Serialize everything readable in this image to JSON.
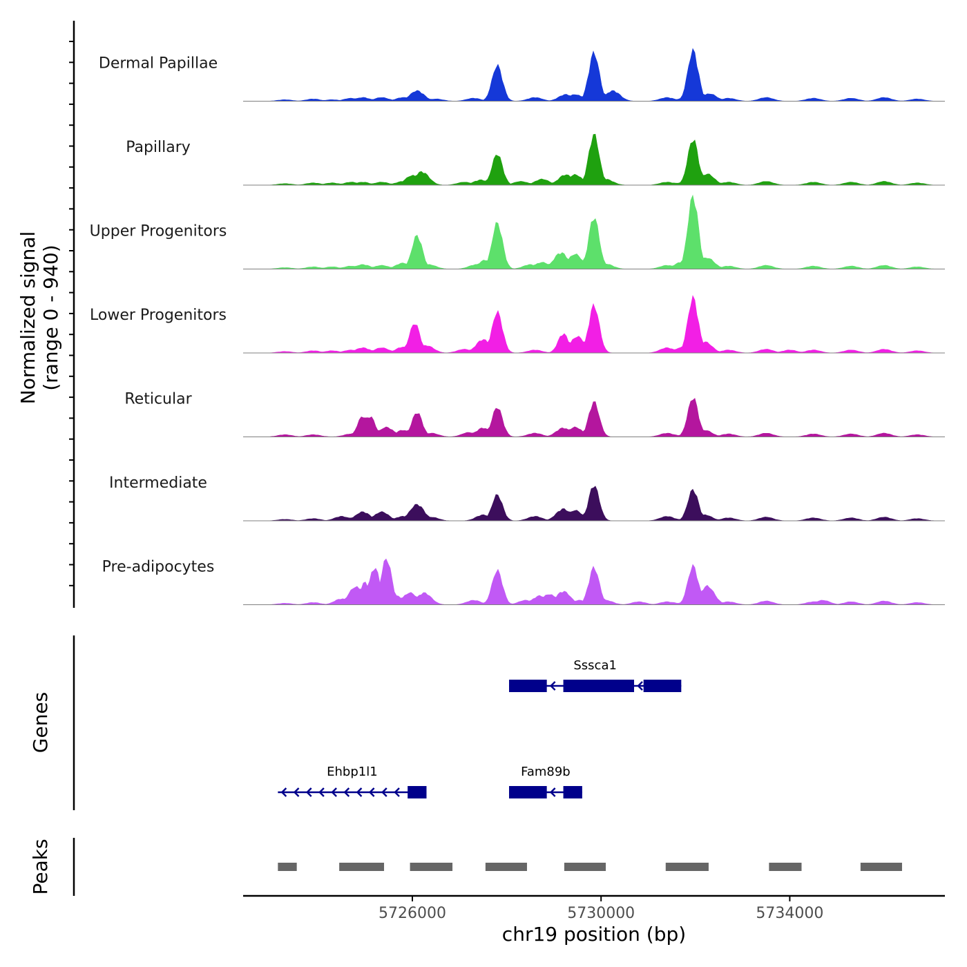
{
  "chart_data": {
    "type": "area",
    "title": "",
    "chromosome": "chr19",
    "xlabel": "chr19 position (bp)",
    "ylabel_line1": "Normalized signal",
    "ylabel_line2": "(range 0 - 940)",
    "yrange": [
      0,
      940
    ],
    "xlim": [
      5722500,
      5737300
    ],
    "xticks": [
      5726000,
      5730000,
      5734000
    ],
    "xtick_labels": [
      "5726000",
      "5730000",
      "5734000"
    ],
    "baseline_noise_peaks": [
      [
        5723300,
        0.02
      ],
      [
        5723900,
        0.03
      ],
      [
        5724700,
        0.04
      ],
      [
        5725300,
        0.03
      ],
      [
        5731500,
        0.03
      ],
      [
        5732700,
        0.04
      ],
      [
        5733500,
        0.05
      ],
      [
        5734500,
        0.04
      ],
      [
        5735300,
        0.04
      ],
      [
        5736000,
        0.05
      ],
      [
        5736700,
        0.03
      ]
    ],
    "series": [
      {
        "name": "Dermal Papillae",
        "color": "#1538D8",
        "peaks": [
          [
            5724300,
            0.02
          ],
          [
            5724950,
            0.05
          ],
          [
            5725350,
            0.05
          ],
          [
            5725800,
            0.05
          ],
          [
            5726100,
            0.14
          ],
          [
            5726500,
            0.03
          ],
          [
            5727300,
            0.04
          ],
          [
            5727800,
            0.48
          ],
          [
            5728600,
            0.05
          ],
          [
            5729250,
            0.09
          ],
          [
            5729450,
            0.09
          ],
          [
            5729850,
            0.65
          ],
          [
            5730250,
            0.14
          ],
          [
            5731400,
            0.05
          ],
          [
            5731800,
            0.05
          ],
          [
            5731950,
            0.68
          ],
          [
            5732300,
            0.1
          ],
          [
            5732700,
            0.03
          ]
        ]
      },
      {
        "name": "Papillary",
        "color": "#1FA10F",
        "peaks": [
          [
            5724300,
            0.03
          ],
          [
            5724950,
            0.04
          ],
          [
            5725350,
            0.04
          ],
          [
            5725800,
            0.05
          ],
          [
            5726000,
            0.13
          ],
          [
            5726200,
            0.18
          ],
          [
            5727100,
            0.04
          ],
          [
            5727450,
            0.07
          ],
          [
            5727800,
            0.42
          ],
          [
            5728300,
            0.05
          ],
          [
            5728750,
            0.08
          ],
          [
            5729250,
            0.14
          ],
          [
            5729450,
            0.14
          ],
          [
            5729850,
            0.68
          ],
          [
            5730100,
            0.08
          ],
          [
            5731400,
            0.04
          ],
          [
            5731800,
            0.05
          ],
          [
            5731950,
            0.62
          ],
          [
            5732250,
            0.15
          ]
        ]
      },
      {
        "name": "Upper Progenitors",
        "color": "#5DE06B",
        "peaks": [
          [
            5724300,
            0.03
          ],
          [
            5724950,
            0.06
          ],
          [
            5725350,
            0.05
          ],
          [
            5725800,
            0.08
          ],
          [
            5726100,
            0.45
          ],
          [
            5726350,
            0.06
          ],
          [
            5727350,
            0.06
          ],
          [
            5727550,
            0.12
          ],
          [
            5727800,
            0.62
          ],
          [
            5728500,
            0.06
          ],
          [
            5728750,
            0.09
          ],
          [
            5729150,
            0.22
          ],
          [
            5729450,
            0.2
          ],
          [
            5729850,
            0.7
          ],
          [
            5730100,
            0.07
          ],
          [
            5731400,
            0.05
          ],
          [
            5731700,
            0.09
          ],
          [
            5731950,
            0.98
          ],
          [
            5732250,
            0.15
          ]
        ]
      },
      {
        "name": "Lower Progenitors",
        "color": "#F21FE5",
        "peaks": [
          [
            5724300,
            0.03
          ],
          [
            5724950,
            0.07
          ],
          [
            5725350,
            0.07
          ],
          [
            5725800,
            0.08
          ],
          [
            5726050,
            0.4
          ],
          [
            5726300,
            0.1
          ],
          [
            5727100,
            0.05
          ],
          [
            5727500,
            0.18
          ],
          [
            5727800,
            0.55
          ],
          [
            5728600,
            0.04
          ],
          [
            5729200,
            0.26
          ],
          [
            5729500,
            0.22
          ],
          [
            5729850,
            0.64
          ],
          [
            5731400,
            0.07
          ],
          [
            5731700,
            0.07
          ],
          [
            5731950,
            0.74
          ],
          [
            5732200,
            0.15
          ],
          [
            5734000,
            0.04
          ]
        ]
      },
      {
        "name": "Reticular",
        "color": "#B4169E",
        "peaks": [
          [
            5723300,
            0.03
          ],
          [
            5724950,
            0.28
          ],
          [
            5725100,
            0.28
          ],
          [
            5725300,
            0.08
          ],
          [
            5725450,
            0.13
          ],
          [
            5725800,
            0.09
          ],
          [
            5726100,
            0.33
          ],
          [
            5726400,
            0.05
          ],
          [
            5727200,
            0.06
          ],
          [
            5727500,
            0.12
          ],
          [
            5727800,
            0.4
          ],
          [
            5728600,
            0.05
          ],
          [
            5729200,
            0.12
          ],
          [
            5729450,
            0.13
          ],
          [
            5729850,
            0.47
          ],
          [
            5731400,
            0.05
          ],
          [
            5731950,
            0.53
          ],
          [
            5732200,
            0.09
          ]
        ]
      },
      {
        "name": "Intermediate",
        "color": "#3C0E5C",
        "peaks": [
          [
            5724500,
            0.06
          ],
          [
            5724950,
            0.12
          ],
          [
            5725350,
            0.12
          ],
          [
            5725800,
            0.06
          ],
          [
            5726100,
            0.22
          ],
          [
            5726400,
            0.05
          ],
          [
            5727500,
            0.08
          ],
          [
            5727800,
            0.35
          ],
          [
            5728600,
            0.06
          ],
          [
            5729200,
            0.16
          ],
          [
            5729450,
            0.14
          ],
          [
            5729850,
            0.48
          ],
          [
            5731400,
            0.06
          ],
          [
            5731950,
            0.42
          ],
          [
            5732200,
            0.08
          ]
        ]
      },
      {
        "name": "Pre-adipocytes",
        "color": "#C159F5",
        "peaks": [
          [
            5724500,
            0.08
          ],
          [
            5724800,
            0.24
          ],
          [
            5725000,
            0.3
          ],
          [
            5725200,
            0.5
          ],
          [
            5725450,
            0.62
          ],
          [
            5725650,
            0.12
          ],
          [
            5725950,
            0.16
          ],
          [
            5726250,
            0.16
          ],
          [
            5727300,
            0.06
          ],
          [
            5727800,
            0.46
          ],
          [
            5728400,
            0.06
          ],
          [
            5728700,
            0.12
          ],
          [
            5728900,
            0.14
          ],
          [
            5729200,
            0.18
          ],
          [
            5729550,
            0.06
          ],
          [
            5729850,
            0.5
          ],
          [
            5730100,
            0.06
          ],
          [
            5730800,
            0.04
          ],
          [
            5731400,
            0.04
          ],
          [
            5731950,
            0.52
          ],
          [
            5732250,
            0.25
          ],
          [
            5733500,
            0.05
          ],
          [
            5734700,
            0.06
          ]
        ]
      }
    ],
    "gene_track_label": "Genes",
    "genes": [
      {
        "name": "Sssca1",
        "start": 5728050,
        "end": 5731700,
        "strand": "-",
        "exons": [
          [
            5728050,
            5728850
          ],
          [
            5729200,
            5730700
          ],
          [
            5730900,
            5731700
          ]
        ]
      },
      {
        "name": "Ehbp1l1",
        "start": 5723150,
        "end": 5726300,
        "strand": "-",
        "exons": [
          [
            5725900,
            5726300
          ]
        ]
      },
      {
        "name": "Fam89b",
        "start": 5728050,
        "end": 5729600,
        "strand": "-",
        "exons": [
          [
            5728050,
            5728850
          ],
          [
            5729200,
            5729600
          ]
        ]
      }
    ],
    "peak_track_label": "Peaks",
    "peaks": [
      [
        5723150,
        5723550
      ],
      [
        5724450,
        5725400
      ],
      [
        5725950,
        5726850
      ],
      [
        5727550,
        5728430
      ],
      [
        5729220,
        5730100
      ],
      [
        5731370,
        5732280
      ],
      [
        5733560,
        5734250
      ],
      [
        5735500,
        5736380
      ]
    ]
  }
}
